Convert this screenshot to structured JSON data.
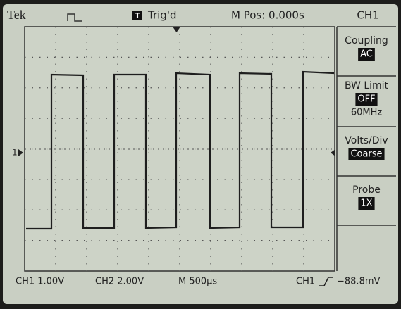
{
  "header": {
    "brand": "Tek",
    "trigger_icon": "T",
    "trigger_status": "Trig'd",
    "position": "M Pos: 0.000s",
    "menu_title": "CH1"
  },
  "menu": [
    {
      "label": "Coupling",
      "value": "AC"
    },
    {
      "label": "BW Limit",
      "value": "OFF",
      "note": "60MHz"
    },
    {
      "label": "Volts/Div",
      "value": "Coarse"
    },
    {
      "label": "Probe",
      "value": "1X"
    }
  ],
  "channel_marker": "1",
  "footer": {
    "ch1_scale": "CH1 1.00V",
    "ch2_scale": "CH2 2.00V",
    "time_scale": "M 500µs",
    "trigger_source": "CH1",
    "trigger_level": "−88.8mV"
  }
}
